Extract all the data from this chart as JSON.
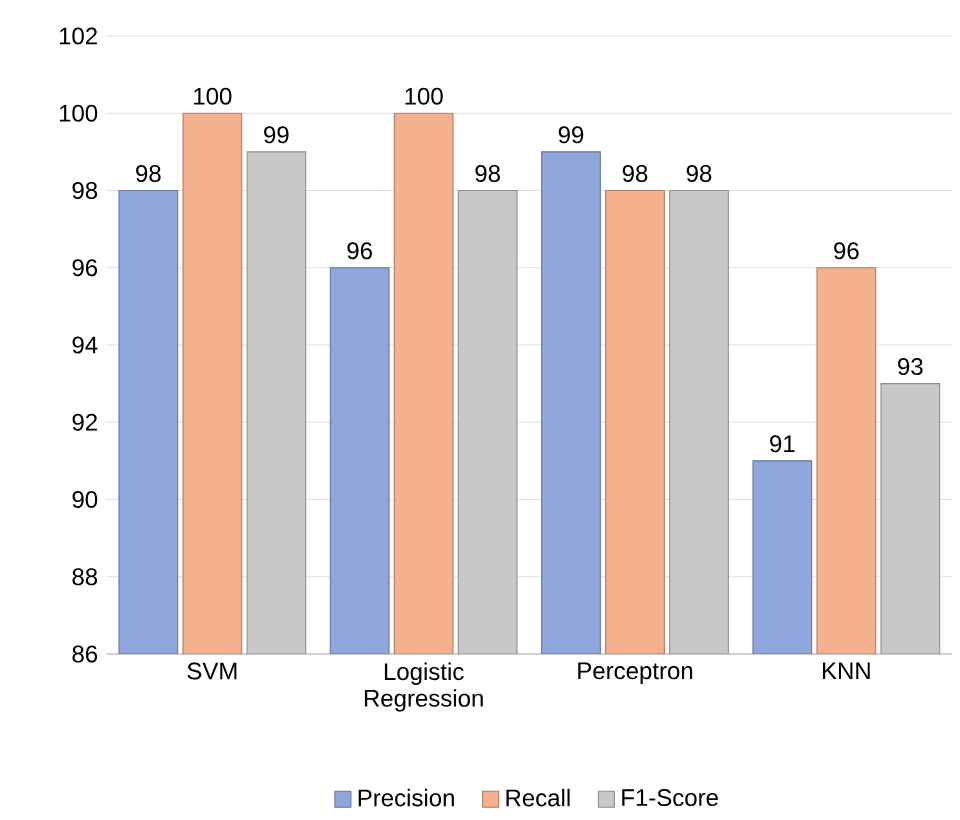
{
  "chart_data": {
    "type": "bar",
    "categories": [
      "SVM",
      "Logistic Regression",
      "Perceptron",
      "KNN"
    ],
    "series": [
      {
        "name": "Precision",
        "color": "#8fa6dc",
        "values": [
          98,
          96,
          99,
          91
        ]
      },
      {
        "name": "Recall",
        "color": "#f5b08e",
        "values": [
          100,
          100,
          98,
          96
        ]
      },
      {
        "name": "F1-Score",
        "color": "#c8c8c8",
        "values": [
          99,
          98,
          98,
          93
        ]
      }
    ],
    "ylim": [
      86,
      102
    ],
    "yticks": [
      86,
      88,
      90,
      92,
      94,
      96,
      98,
      100,
      102
    ],
    "grid": "y",
    "legend": "bottom",
    "data_labels": true
  }
}
